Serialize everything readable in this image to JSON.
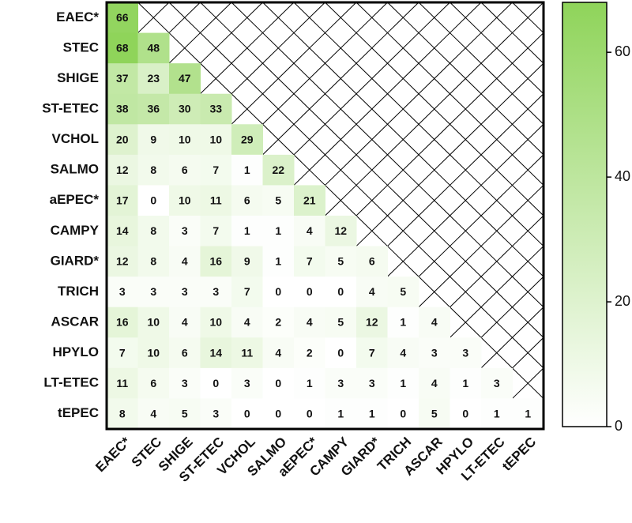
{
  "chart_data": {
    "type": "heatmap",
    "categories": [
      "EAEC*",
      "STEC",
      "SHIGE",
      "ST-ETEC",
      "VCHOL",
      "SALMO",
      "aEPEC*",
      "CAMPY",
      "GIARD*",
      "TRICH",
      "ASCAR",
      "HPYLO",
      "LT-ETEC",
      "tEPEC"
    ],
    "values": [
      [
        66
      ],
      [
        68,
        48
      ],
      [
        37,
        23,
        47
      ],
      [
        38,
        36,
        30,
        33
      ],
      [
        20,
        9,
        10,
        10,
        29
      ],
      [
        12,
        8,
        6,
        7,
        1,
        22
      ],
      [
        17,
        0,
        10,
        11,
        6,
        5,
        21
      ],
      [
        14,
        8,
        3,
        7,
        1,
        1,
        4,
        12
      ],
      [
        12,
        8,
        4,
        16,
        9,
        1,
        7,
        5,
        6
      ],
      [
        3,
        3,
        3,
        3,
        7,
        0,
        0,
        0,
        4,
        5
      ],
      [
        16,
        10,
        4,
        10,
        4,
        2,
        4,
        5,
        12,
        1,
        4
      ],
      [
        7,
        10,
        6,
        14,
        11,
        4,
        2,
        0,
        7,
        4,
        3,
        3
      ],
      [
        11,
        6,
        3,
        0,
        3,
        0,
        1,
        3,
        3,
        1,
        4,
        1,
        3
      ],
      [
        8,
        4,
        5,
        3,
        0,
        0,
        0,
        1,
        1,
        0,
        5,
        0,
        1,
        1
      ]
    ],
    "colors": [
      "#ffffff",
      "#8fd45a"
    ],
    "clim": [
      0,
      68
    ],
    "cticks": [
      0,
      20,
      40,
      60
    ]
  }
}
